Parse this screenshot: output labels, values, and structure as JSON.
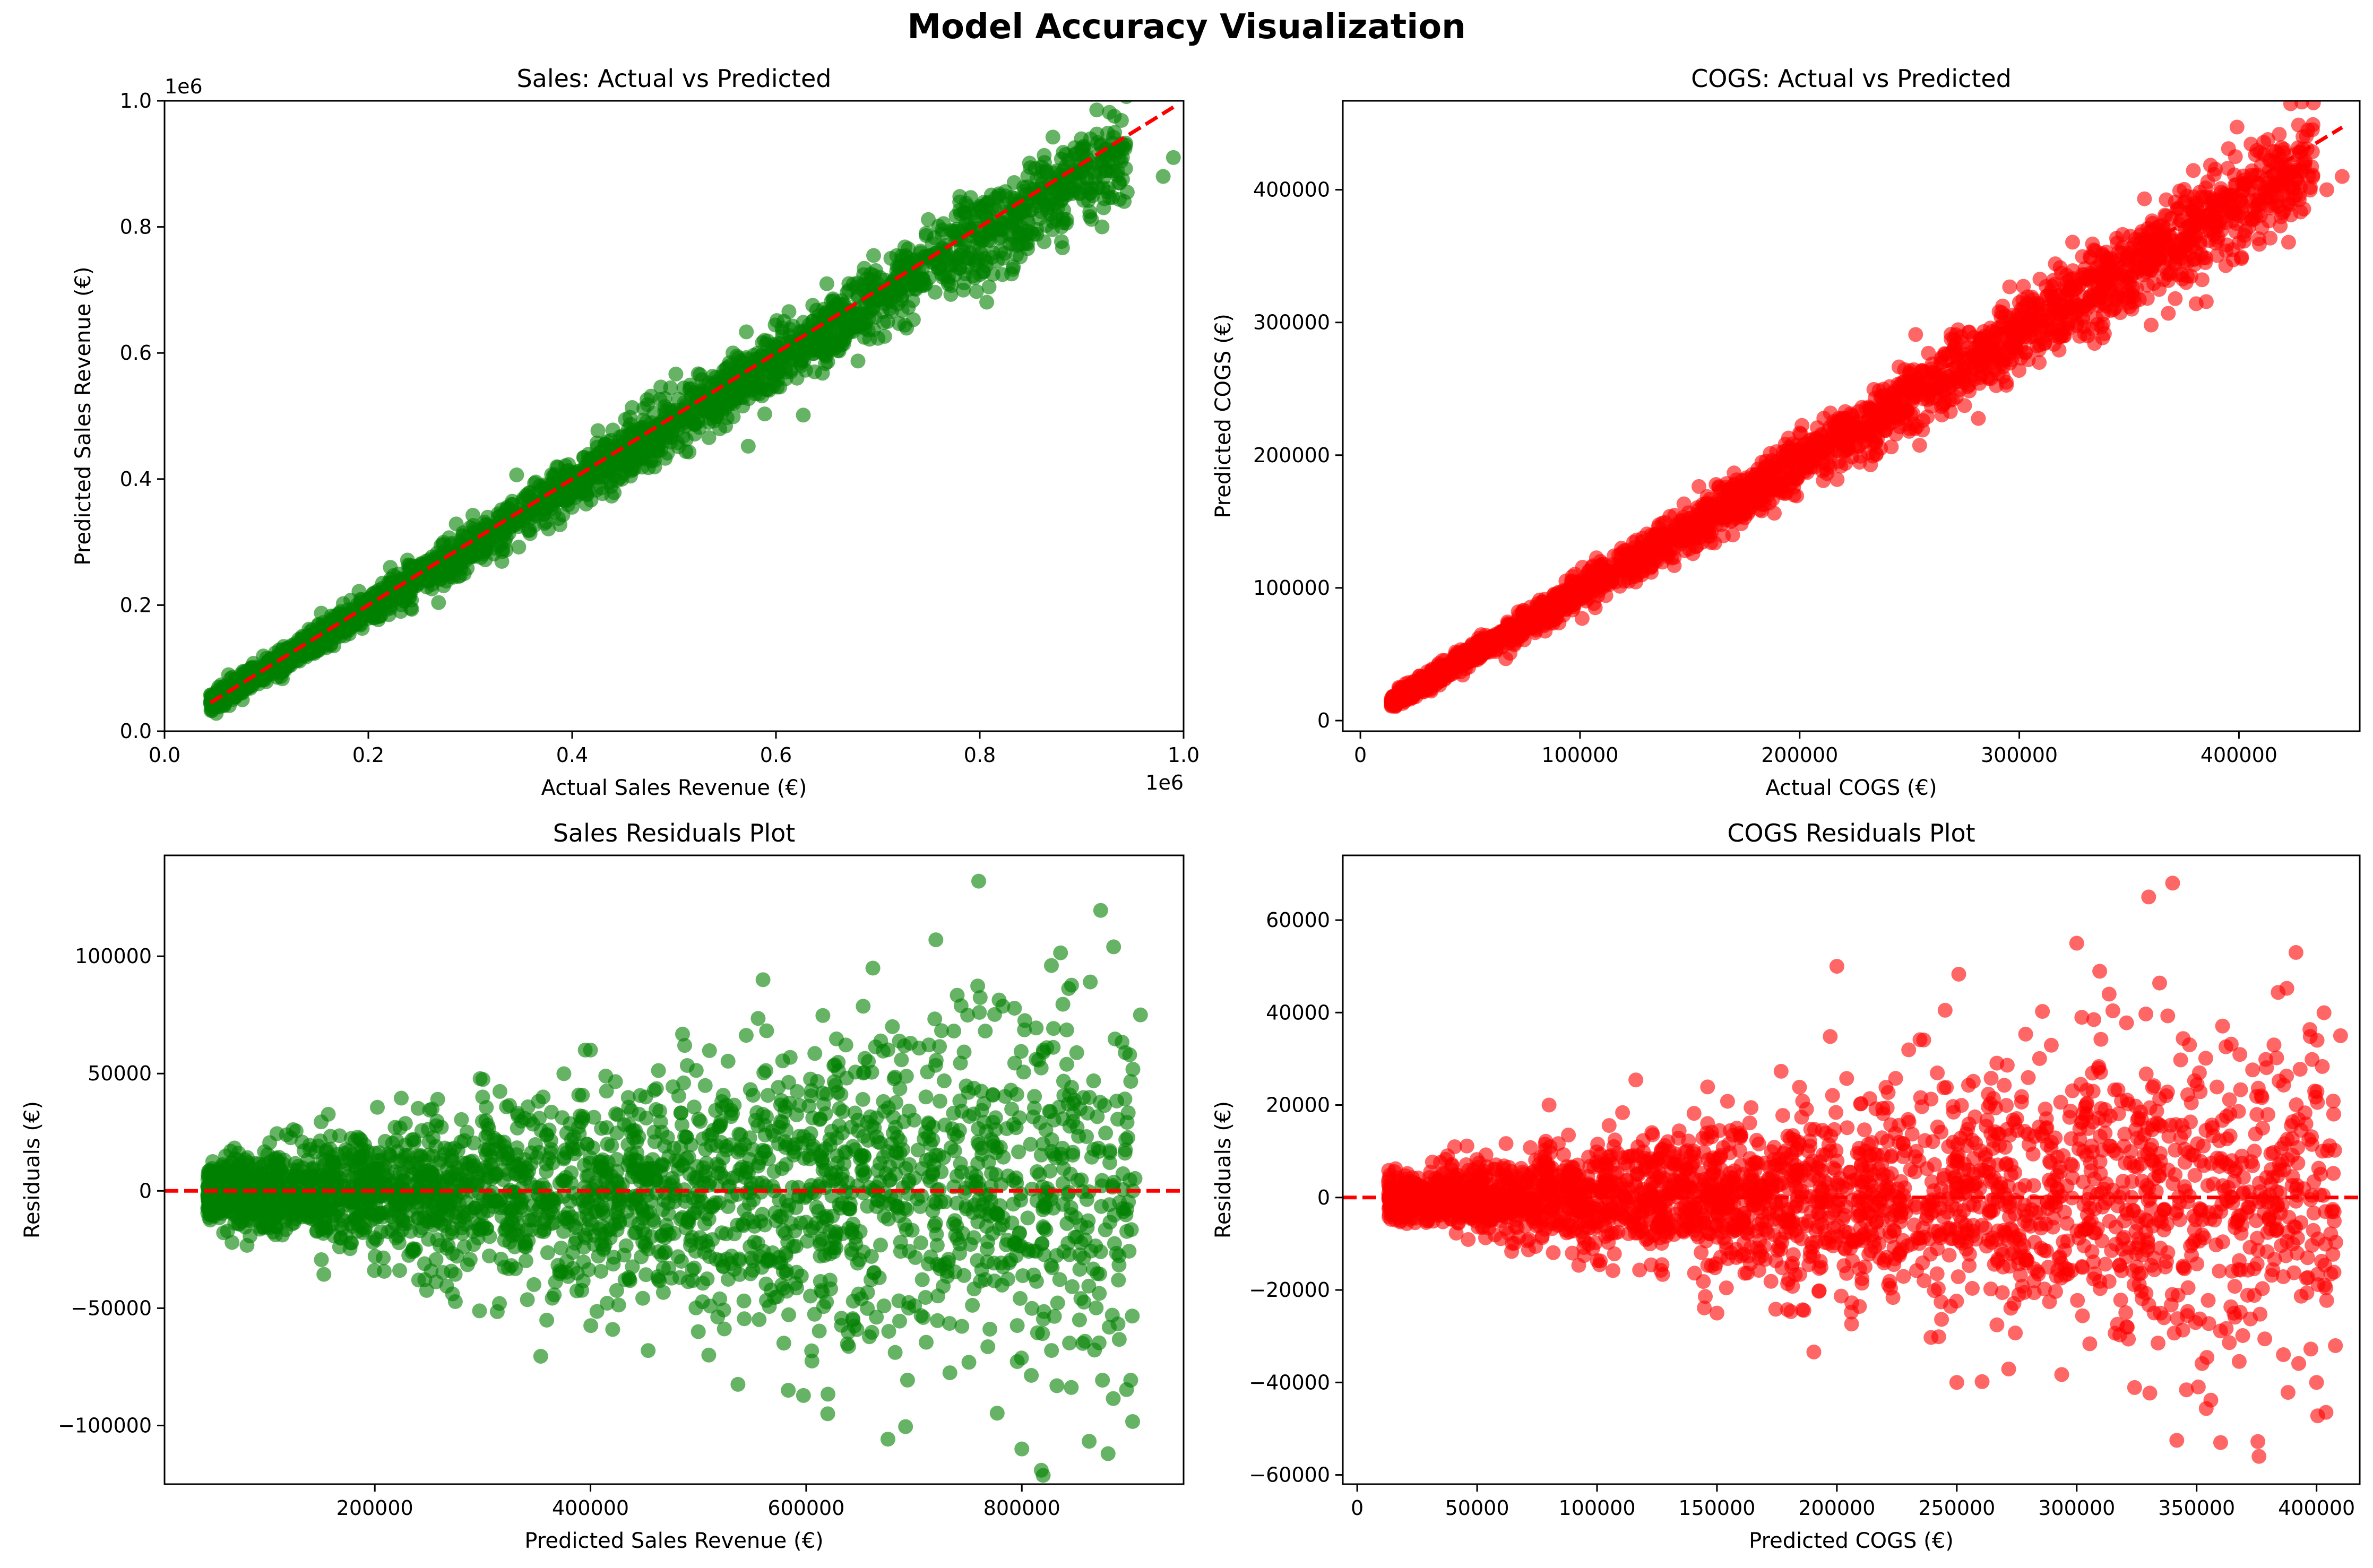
{
  "figure": {
    "title": "Model Accuracy Visualization"
  },
  "chart_data": [
    {
      "id": "sales_scatter",
      "type": "scatter",
      "title": "Sales: Actual vs Predicted",
      "xlabel": "Actual Sales Revenue (€)",
      "ylabel": "Predicted Sales Revenue (€)",
      "xlim": [
        0,
        1000000
      ],
      "ylim": [
        0,
        1000000
      ],
      "x_offset_label": "1e6",
      "y_offset_label": "1e6",
      "x_ticks": [
        0,
        200000,
        400000,
        600000,
        800000,
        1000000
      ],
      "x_tick_labels": [
        "0.0",
        "0.2",
        "0.4",
        "0.6",
        "0.8",
        "1.0"
      ],
      "y_ticks": [
        0,
        200000,
        400000,
        600000,
        800000,
        1000000
      ],
      "y_tick_labels": [
        "0.0",
        "0.2",
        "0.4",
        "0.6",
        "0.8",
        "1.0"
      ],
      "point_color": "#008000",
      "line_color": "#ff0000",
      "reference_line": {
        "x": [
          45000,
          990000
        ],
        "y": [
          45000,
          990000
        ]
      },
      "points": {
        "x": [
          60000,
          120000,
          200000,
          280000,
          340000,
          400000,
          460000,
          520000,
          580000,
          640000,
          700000,
          760000,
          820000,
          880000,
          940000,
          990000,
          980000,
          920000,
          870000
        ],
        "y": [
          55000,
          115000,
          210000,
          270000,
          350000,
          390000,
          470000,
          510000,
          590000,
          630000,
          710000,
          750000,
          810000,
          870000,
          910000,
          910000,
          880000,
          800000,
          870000
        ]
      }
    },
    {
      "id": "cogs_scatter",
      "type": "scatter",
      "title": "COGS: Actual vs Predicted",
      "xlabel": "Actual COGS (€)",
      "ylabel": "Predicted COGS (€)",
      "xlim": [
        -8000,
        455000
      ],
      "ylim": [
        -8000,
        467000
      ],
      "x_ticks": [
        0,
        100000,
        200000,
        300000,
        400000
      ],
      "x_tick_labels": [
        "0",
        "100000",
        "200000",
        "300000",
        "400000"
      ],
      "y_ticks": [
        0,
        100000,
        200000,
        300000,
        400000
      ],
      "y_tick_labels": [
        "0",
        "100000",
        "200000",
        "300000",
        "400000"
      ],
      "point_color": "#ff0000",
      "line_color": "#ff0000",
      "reference_line": {
        "x": [
          14000,
          447000
        ],
        "y": [
          14000,
          447000
        ]
      },
      "points": {
        "x": [
          20000,
          60000,
          100000,
          140000,
          180000,
          220000,
          260000,
          300000,
          340000,
          380000,
          420000,
          447000,
          440000,
          400000
        ],
        "y": [
          18000,
          60000,
          105000,
          135000,
          185000,
          215000,
          265000,
          295000,
          345000,
          375000,
          400000,
          410000,
          400000,
          360000
        ]
      }
    },
    {
      "id": "sales_residuals",
      "type": "scatter",
      "title": "Sales Residuals Plot",
      "xlabel": "Predicted Sales Revenue (€)",
      "ylabel": "Residuals (€)",
      "xlim": [
        5000,
        950000
      ],
      "ylim": [
        -125000,
        143000
      ],
      "x_ticks": [
        200000,
        400000,
        600000,
        800000
      ],
      "x_tick_labels": [
        "200000",
        "400000",
        "600000",
        "800000"
      ],
      "y_ticks": [
        -100000,
        -50000,
        0,
        50000,
        100000
      ],
      "y_tick_labels": [
        "−100000",
        "−50000",
        "0",
        "50000",
        "100000"
      ],
      "point_color": "#008000",
      "line_color": "#ff0000",
      "reference_line": {
        "x": [
          5000,
          950000
        ],
        "y": [
          0,
          0
        ]
      },
      "points": {
        "x": [
          100000,
          200000,
          300000,
          400000,
          500000,
          560000,
          620000,
          680000,
          760000,
          800000,
          820000,
          880000,
          900000,
          910000
        ],
        "y": [
          5000,
          -20000,
          40000,
          60000,
          -60000,
          90000,
          -95000,
          70000,
          132000,
          -110000,
          60000,
          -112000,
          58000,
          75000
        ]
      }
    },
    {
      "id": "cogs_residuals",
      "type": "scatter",
      "title": "COGS Residuals Plot",
      "xlabel": "Predicted COGS (€)",
      "ylabel": "Residuals (€)",
      "xlim": [
        -6000,
        418000
      ],
      "ylim": [
        -62000,
        74000
      ],
      "x_ticks": [
        0,
        50000,
        100000,
        150000,
        200000,
        250000,
        300000,
        350000,
        400000
      ],
      "x_tick_labels": [
        "0",
        "50000",
        "100000",
        "150000",
        "200000",
        "250000",
        "300000",
        "350000",
        "400000"
      ],
      "y_ticks": [
        -60000,
        -40000,
        -20000,
        0,
        20000,
        40000,
        60000
      ],
      "y_tick_labels": [
        "−60000",
        "−40000",
        "−20000",
        "0",
        "20000",
        "40000",
        "60000"
      ],
      "point_color": "#ff0000",
      "line_color": "#ff0000",
      "reference_line": {
        "x": [
          -6000,
          418000
        ],
        "y": [
          0,
          0
        ]
      },
      "points": {
        "x": [
          20000,
          80000,
          150000,
          200000,
          250000,
          300000,
          330000,
          340000,
          360000,
          376000,
          400000,
          410000
        ],
        "y": [
          2000,
          20000,
          -25000,
          50000,
          -40000,
          55000,
          65000,
          68000,
          -53000,
          -56000,
          -40000,
          35000
        ]
      }
    }
  ]
}
